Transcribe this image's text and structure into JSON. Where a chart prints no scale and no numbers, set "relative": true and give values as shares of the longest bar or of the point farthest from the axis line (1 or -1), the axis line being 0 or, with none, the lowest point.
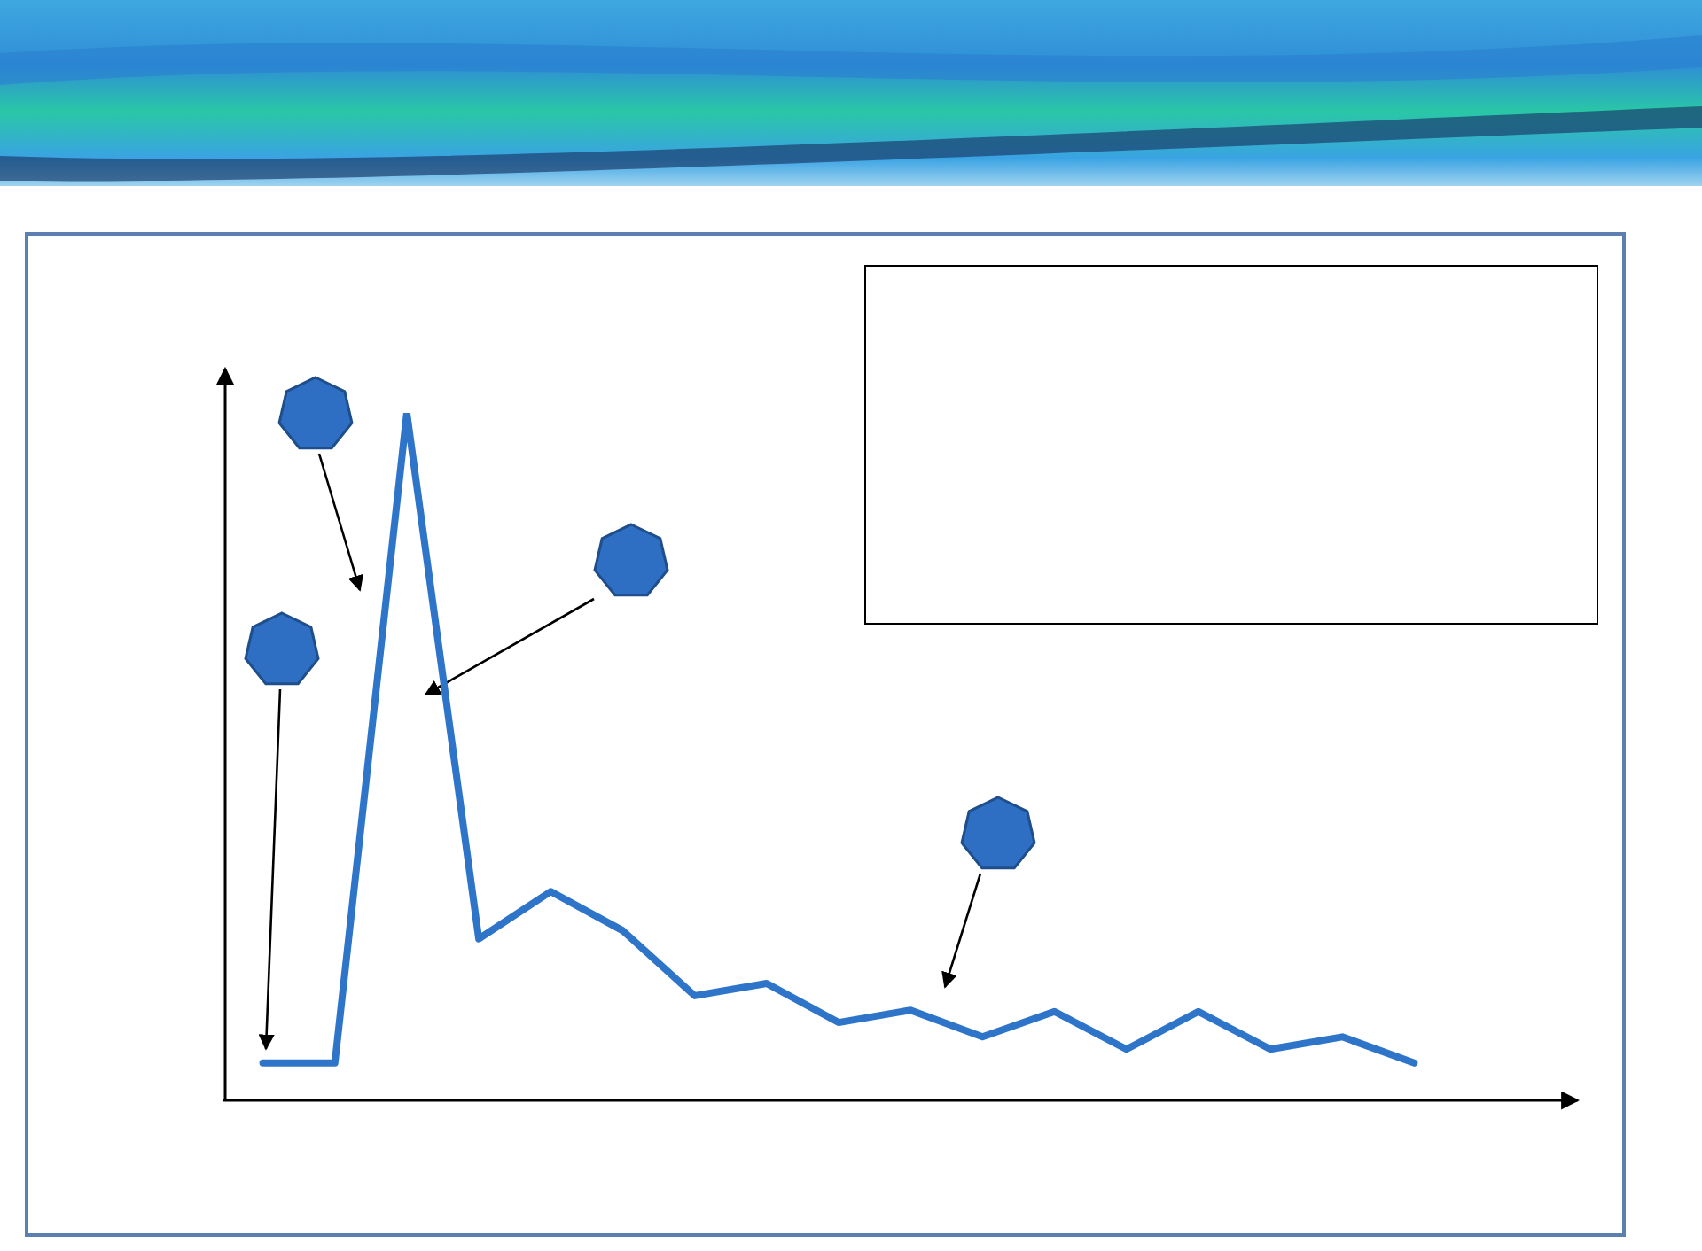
{
  "chart_data": {
    "type": "line",
    "relative": true,
    "categories": [
      null,
      null,
      null,
      null,
      null,
      null,
      null,
      null,
      null,
      null,
      null,
      null,
      null,
      null,
      null,
      null,
      null
    ],
    "series": [
      {
        "color": "#2e75c9",
        "values": [
          0.052,
          0.052,
          1,
          0.233,
          0.302,
          0.245,
          0.15,
          0.168,
          0.111,
          0.129,
          0.09,
          0.127,
          0.072,
          0.127,
          0.072,
          0.09,
          0.052
        ]
      }
    ]
  }
}
